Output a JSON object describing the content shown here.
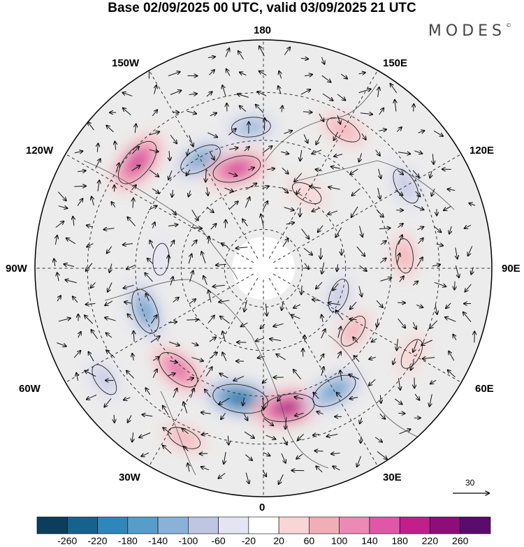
{
  "title": "Base 02/09/2025 00 UTC, valid 03/09/2025 21 UTC",
  "brand": "MODES",
  "brand_mark": "©",
  "longitude_labels": {
    "top": "180",
    "bottom": "0",
    "left": "90W",
    "right": "90E",
    "w150": "150W",
    "e150": "150E",
    "w120": "120W",
    "e120": "120E",
    "w60": "60W",
    "e60": "60E",
    "w30": "30W",
    "e30": "30E"
  },
  "reference_vector": {
    "label": "30"
  },
  "colorbar": {
    "colors": [
      "#0b3d5c",
      "#16628f",
      "#2e86ba",
      "#569ec9",
      "#8ab2d8",
      "#bfc6e2",
      "#e5e4f2",
      "#ffffff",
      "#f8d6d6",
      "#f2aeb6",
      "#ec8ab3",
      "#e057a8",
      "#c21e8c",
      "#8f0c7b",
      "#5b0a6e"
    ],
    "labels": [
      "-260",
      "-220",
      "-180",
      "-140",
      "-100",
      "-60",
      "-20",
      "20",
      "60",
      "100",
      "140",
      "180",
      "220",
      "260"
    ]
  },
  "anomaly_centers": [
    {
      "lon": -130,
      "dist": 0.72,
      "value": 200
    },
    {
      "lon": -150,
      "dist": 0.55,
      "value": -140
    },
    {
      "lon": -165,
      "dist": 0.45,
      "value": 180
    },
    {
      "lon": -175,
      "dist": 0.62,
      "value": -100
    },
    {
      "lon": 150,
      "dist": 0.7,
      "value": 80
    },
    {
      "lon": 120,
      "dist": 0.72,
      "value": -90
    },
    {
      "lon": 95,
      "dist": 0.62,
      "value": 60
    },
    {
      "lon": 150,
      "dist": 0.38,
      "value": 40
    },
    {
      "lon": -70,
      "dist": 0.55,
      "value": -160
    },
    {
      "lon": -40,
      "dist": 0.58,
      "value": 160
    },
    {
      "lon": -10,
      "dist": 0.58,
      "value": -240
    },
    {
      "lon": 10,
      "dist": 0.62,
      "value": 220
    },
    {
      "lon": 30,
      "dist": 0.62,
      "value": -170
    },
    {
      "lon": 55,
      "dist": 0.48,
      "value": 60
    },
    {
      "lon": 70,
      "dist": 0.35,
      "value": -60
    },
    {
      "lon": -95,
      "dist": 0.45,
      "value": -40
    },
    {
      "lon": -55,
      "dist": 0.85,
      "value": -60
    },
    {
      "lon": -25,
      "dist": 0.82,
      "value": 60
    },
    {
      "lon": 60,
      "dist": 0.75,
      "value": 40
    }
  ]
}
